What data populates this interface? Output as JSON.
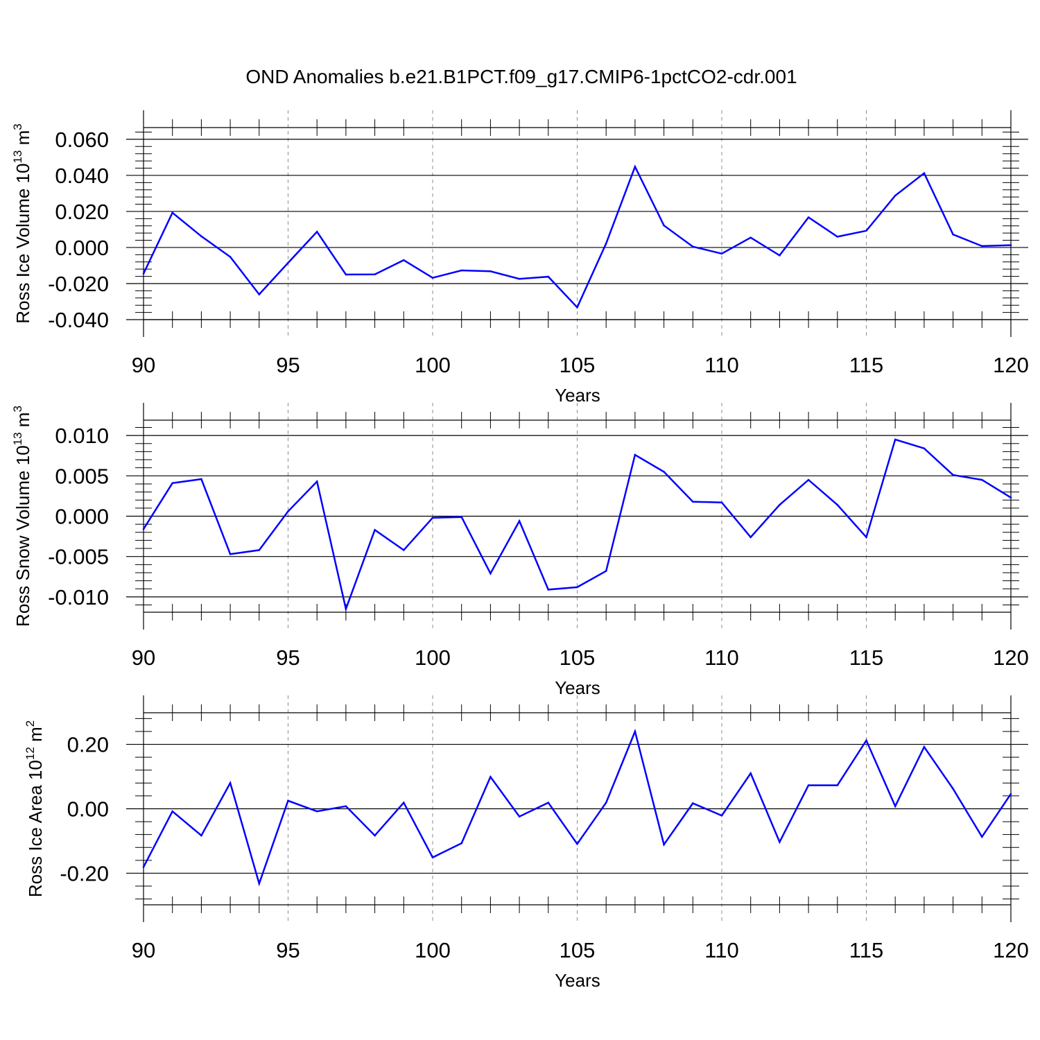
{
  "title": "OND Anomalies b.e21.B1PCT.f09_g17.CMIP6-1pctCO2-cdr.001",
  "colors": {
    "line": "#0000ff",
    "axis": "#000000",
    "grid": "#8c8c8c"
  },
  "chart_data": [
    {
      "type": "line",
      "xlabel": "Years",
      "ylabel_main": "Ross Ice Volume 10",
      "ylabel_sup": "13",
      "ylabel_unit": " m",
      "ylabel_unit_sup": "3",
      "xlim": [
        90,
        120
      ],
      "ylim": [
        -0.04,
        0.0665
      ],
      "y_ticks": [
        "0.060",
        "0.040",
        "0.020",
        "0.000",
        "-0.020",
        "-0.040"
      ],
      "y_tick_values": [
        0.06,
        0.04,
        0.02,
        0.0,
        -0.02,
        -0.04
      ],
      "x_ticks": [
        "90",
        "95",
        "100",
        "105",
        "110",
        "115",
        "120"
      ],
      "grid_x": [
        95,
        100,
        105,
        110,
        115
      ],
      "x": [
        90,
        91,
        92,
        93,
        94,
        95,
        96,
        97,
        98,
        99,
        100,
        101,
        102,
        103,
        104,
        105,
        106,
        107,
        108,
        109,
        110,
        111,
        112,
        113,
        114,
        115,
        116,
        117,
        118,
        119,
        120
      ],
      "y": [
        -0.0145,
        0.0193,
        0.0062,
        -0.0052,
        -0.026,
        -0.0085,
        0.0087,
        -0.015,
        -0.0149,
        -0.007,
        -0.0168,
        -0.0127,
        -0.0132,
        -0.0174,
        -0.0162,
        -0.0332,
        0.0022,
        0.0448,
        0.0122,
        0.0005,
        -0.0034,
        0.0055,
        -0.0044,
        0.0167,
        0.006,
        0.0093,
        0.0288,
        0.0412,
        0.0072,
        0.0008,
        0.0013
      ]
    },
    {
      "type": "line",
      "xlabel": "Years",
      "ylabel_main": "Ross Snow Volume 10",
      "ylabel_sup": "13",
      "ylabel_unit": " m",
      "ylabel_unit_sup": "3",
      "xlim": [
        90,
        120
      ],
      "ylim": [
        -0.0119,
        0.0119
      ],
      "y_ticks": [
        "0.010",
        "0.005",
        "0.000",
        "-0.005",
        "-0.010"
      ],
      "y_tick_values": [
        0.01,
        0.005,
        0.0,
        -0.005,
        -0.01
      ],
      "x_ticks": [
        "90",
        "95",
        "100",
        "105",
        "110",
        "115",
        "120"
      ],
      "grid_x": [
        95,
        100,
        105,
        110,
        115
      ],
      "x": [
        90,
        91,
        92,
        93,
        94,
        95,
        96,
        97,
        98,
        99,
        100,
        101,
        102,
        103,
        104,
        105,
        106,
        107,
        108,
        109,
        110,
        111,
        112,
        113,
        114,
        115,
        116,
        117,
        118,
        119,
        120
      ],
      "y": [
        -0.0016,
        0.0041,
        0.0046,
        -0.0047,
        -0.0042,
        0.0006,
        0.0043,
        -0.0115,
        -0.0017,
        -0.0042,
        -0.0002,
        -0.0001,
        -0.0071,
        -0.0006,
        -0.0091,
        -0.0088,
        -0.0068,
        0.0076,
        0.0055,
        0.0018,
        0.0017,
        -0.0026,
        0.0014,
        0.0045,
        0.0014,
        -0.0026,
        0.0095,
        0.0084,
        0.0051,
        0.0045,
        0.0023
      ]
    },
    {
      "type": "line",
      "xlabel": "Years",
      "ylabel_main": "Ross Ice Area 10",
      "ylabel_sup": "12",
      "ylabel_unit": " m",
      "ylabel_unit_sup": "2",
      "xlim": [
        90,
        120
      ],
      "ylim": [
        -0.298,
        0.298
      ],
      "y_ticks": [
        "0.20",
        "0.00",
        "-0.20"
      ],
      "y_tick_values": [
        0.2,
        0.0,
        -0.2
      ],
      "x_ticks": [
        "90",
        "95",
        "100",
        "105",
        "110",
        "115",
        "120"
      ],
      "grid_x": [
        95,
        100,
        105,
        110,
        115
      ],
      "x": [
        90,
        91,
        92,
        93,
        94,
        95,
        96,
        97,
        98,
        99,
        100,
        101,
        102,
        103,
        104,
        105,
        106,
        107,
        108,
        109,
        110,
        111,
        112,
        113,
        114,
        115,
        116,
        117,
        118,
        119,
        120
      ],
      "y": [
        -0.181,
        -0.008,
        -0.083,
        0.08,
        -0.232,
        0.025,
        -0.008,
        0.008,
        -0.083,
        0.019,
        -0.151,
        -0.107,
        0.099,
        -0.024,
        0.019,
        -0.109,
        0.019,
        0.24,
        -0.111,
        0.017,
        -0.021,
        0.11,
        -0.103,
        0.073,
        0.073,
        0.212,
        0.008,
        0.192,
        0.062,
        -0.087,
        0.046
      ]
    }
  ]
}
